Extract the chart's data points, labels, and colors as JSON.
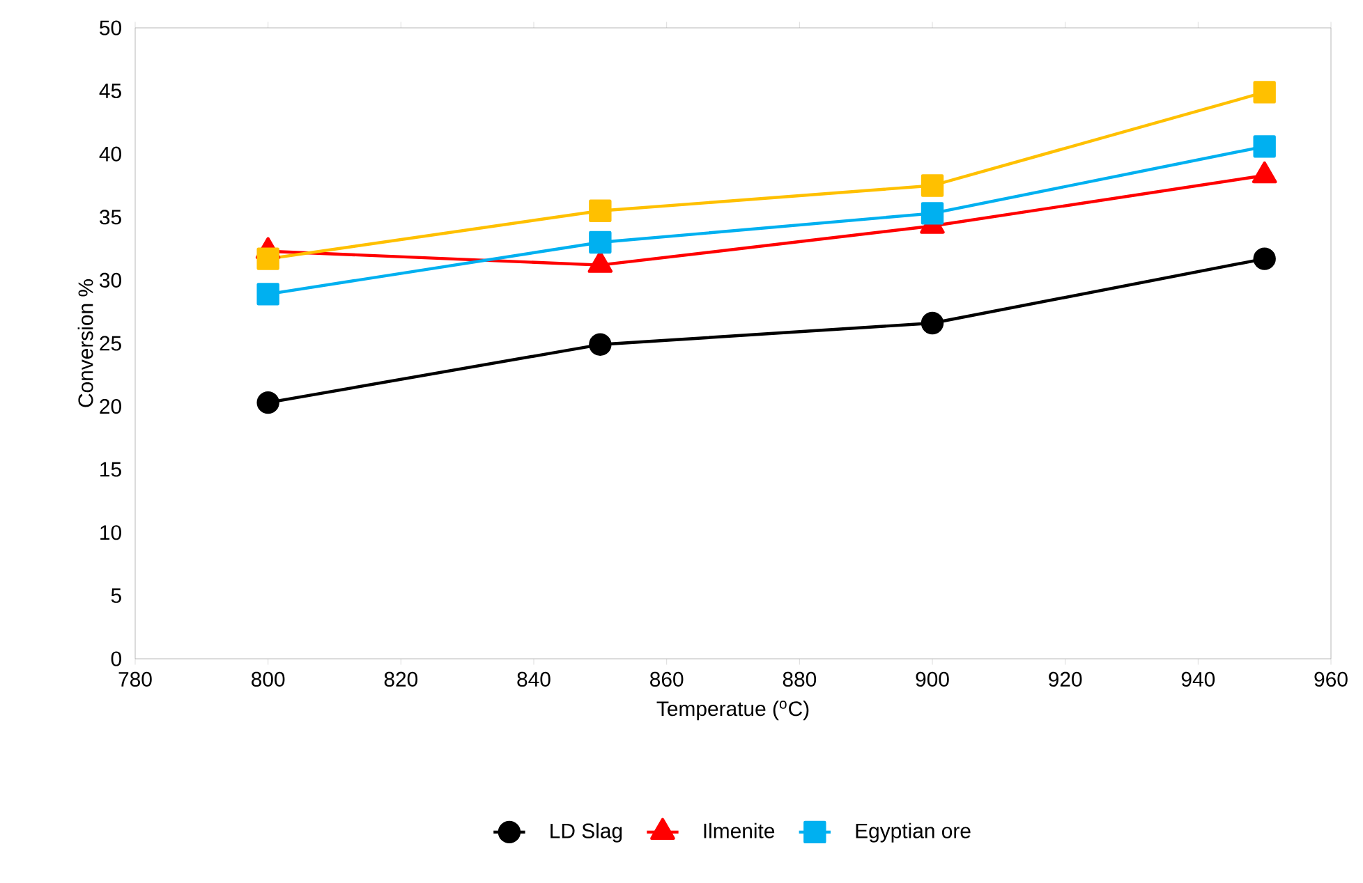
{
  "chart_data": {
    "type": "line",
    "xlabel": "Temperatue ($^{o}$C)",
    "ylabel": "Conversion %",
    "x": [
      800,
      850,
      900,
      950
    ],
    "series": [
      {
        "name": "LD Slag",
        "color": "#000000",
        "marker": "circle",
        "values": [
          20.3,
          24.9,
          26.6,
          31.7
        ]
      },
      {
        "name": "Ilmenite",
        "color": "#ff0000",
        "marker": "triangle",
        "values": [
          32.3,
          31.2,
          34.3,
          38.3
        ]
      },
      {
        "color": "#ffc000",
        "marker": "square",
        "values": [
          31.7,
          35.5,
          37.5,
          44.9
        ]
      },
      {
        "name": "Egyptian ore",
        "color": "#00b0f0",
        "marker": "square",
        "values": [
          28.9,
          33.0,
          35.3,
          40.6
        ]
      }
    ],
    "xlim": [
      780,
      960
    ],
    "xticks": [
      780,
      800,
      820,
      840,
      860,
      880,
      900,
      920,
      940,
      960
    ],
    "ylim": [
      0,
      50
    ],
    "yticks": [
      0,
      5,
      10,
      15,
      20,
      25,
      30,
      35,
      40,
      45,
      50
    ],
    "grid": false,
    "legend": "bottom",
    "line_style": "solid"
  }
}
